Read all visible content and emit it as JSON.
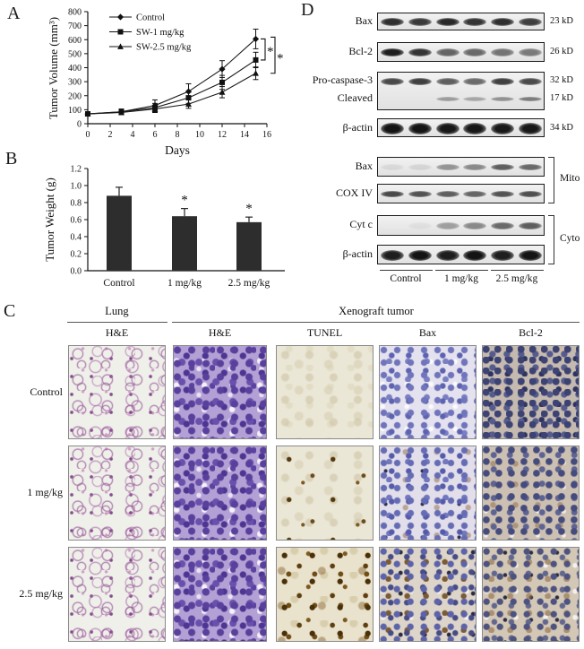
{
  "figure": {
    "panel_a_label": "A",
    "panel_b_label": "B",
    "panel_c_label": "C",
    "panel_d_label": "D"
  },
  "chart_data": [
    {
      "type": "line",
      "title": "",
      "xlabel": "Days",
      "ylabel": "Tumor Volume (mm³)",
      "x": [
        0,
        3,
        6,
        9,
        12,
        15
      ],
      "xlim": [
        0,
        16
      ],
      "x_tick_step": 2,
      "ylim": [
        0,
        800
      ],
      "y_tick_step": 100,
      "grid": false,
      "legend_position": "top-left-inside",
      "series": [
        {
          "name": "Control",
          "marker": "diamond",
          "values": [
            70,
            85,
            130,
            230,
            390,
            605
          ],
          "errors": [
            15,
            20,
            40,
            55,
            60,
            70
          ]
        },
        {
          "name": "SW-1 mg/kg",
          "marker": "square",
          "values": [
            70,
            85,
            115,
            185,
            295,
            455
          ],
          "errors": [
            12,
            18,
            30,
            40,
            50,
            55
          ]
        },
        {
          "name": "SW-2.5 mg/kg",
          "marker": "triangle",
          "values": [
            70,
            80,
            105,
            140,
            225,
            360
          ],
          "errors": [
            10,
            15,
            25,
            30,
            40,
            45
          ]
        }
      ],
      "significance": [
        {
          "compare": [
            "Control",
            "SW-1 mg/kg"
          ],
          "label": "*"
        },
        {
          "compare": [
            "Control",
            "SW-2.5 mg/kg"
          ],
          "label": "*"
        }
      ],
      "line_color": "#1a1a1a"
    },
    {
      "type": "bar",
      "title": "",
      "xlabel": "",
      "ylabel": "Tumor Weight (g)",
      "categories": [
        "Control",
        "1 mg/kg",
        "2.5 mg/kg"
      ],
      "values": [
        0.88,
        0.64,
        0.57
      ],
      "errors": [
        0.1,
        0.09,
        0.06
      ],
      "annotations": [
        "",
        "*",
        "*"
      ],
      "ylim": [
        0,
        1.2
      ],
      "y_tick_step": 0.2,
      "grid": false,
      "bar_color": "#2d2d2d"
    }
  ],
  "panel_d": {
    "top_boxes": [
      {
        "rows": [
          {
            "label": "Bax",
            "kd": "23 kD",
            "lanes": [
              0.88,
              0.82,
              0.9,
              0.85,
              0.88,
              0.8
            ]
          }
        ]
      },
      {
        "rows": [
          {
            "label": "Bcl-2",
            "kd": "26 kD",
            "lanes": [
              0.95,
              0.85,
              0.62,
              0.6,
              0.55,
              0.52
            ]
          }
        ]
      },
      {
        "rows": [
          {
            "label": "Pro-caspase-3",
            "kd": "32 kD",
            "lanes": [
              0.75,
              0.8,
              0.65,
              0.6,
              0.8,
              0.75
            ]
          },
          {
            "label": "Cleaved",
            "kd": "17 kD",
            "lanes": [
              0,
              0,
              0.35,
              0.3,
              0.4,
              0.5
            ]
          }
        ]
      },
      {
        "rows": [
          {
            "label": "β-actin",
            "kd": "34 kD",
            "lanes": [
              1,
              1,
              0.98,
              0.98,
              0.98,
              0.98
            ]
          }
        ]
      }
    ],
    "bottom_boxes": [
      {
        "rows": [
          {
            "label": "Bax",
            "lanes": [
              0.08,
              0.1,
              0.4,
              0.45,
              0.65,
              0.6
            ]
          }
        ]
      },
      {
        "rows": [
          {
            "label": "COX IV",
            "lanes": [
              0.75,
              0.7,
              0.65,
              0.62,
              0.7,
              0.72
            ]
          }
        ]
      },
      {
        "rows": [
          {
            "label": "Cyt c",
            "lanes": [
              0,
              0.05,
              0.35,
              0.45,
              0.6,
              0.65
            ]
          }
        ]
      },
      {
        "rows": [
          {
            "label": "β-actin",
            "lanes": [
              0.95,
              1,
              0.95,
              1,
              0.95,
              1
            ]
          }
        ]
      }
    ],
    "fraction_brackets": [
      {
        "label": "Mito",
        "from_box": 0,
        "to_box": 1
      },
      {
        "label": "Cyto",
        "from_box": 2,
        "to_box": 3
      }
    ],
    "lane_groups": [
      "Control",
      "1 mg/kg",
      "2.5 mg/kg"
    ]
  },
  "panel_c": {
    "column_groups": [
      {
        "label": "Lung",
        "span": 1
      },
      {
        "label": "Xenograft tumor",
        "span": 4
      }
    ],
    "column_headers": [
      "H&E",
      "H&E",
      "TUNEL",
      "Bax",
      "Bcl-2"
    ],
    "rows": [
      {
        "label": "Control",
        "cells": [
          "lung",
          "he",
          "tunel-none",
          "bax-low",
          "bcl2-high"
        ]
      },
      {
        "label": "1 mg/kg",
        "cells": [
          "lung",
          "he",
          "tunel-few",
          "bax-mid",
          "bcl2-mid"
        ]
      },
      {
        "label": "2.5 mg/kg",
        "cells": [
          "lung",
          "he",
          "tunel-many",
          "bax-high",
          "bcl2-low"
        ]
      }
    ]
  }
}
